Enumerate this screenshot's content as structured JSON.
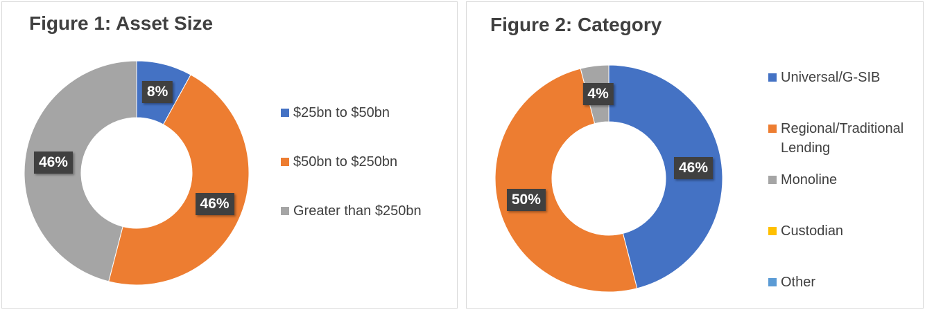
{
  "chart_data": [
    {
      "type": "donut",
      "title": "Figure 1: Asset Size",
      "categories": [
        "$25bn to $50bn",
        "$50bn to $250bn",
        "Greater than $250bn"
      ],
      "values": [
        8,
        46,
        46
      ],
      "value_labels": [
        "8%",
        "46%",
        "46%"
      ],
      "colors": [
        "#4472c4",
        "#ed7d31",
        "#a5a5a5"
      ]
    },
    {
      "type": "donut",
      "title": "Figure 2: Category",
      "categories": [
        "Universal/G-SIB",
        "Regional/Traditional Lending",
        "Monoline",
        "Custodian",
        "Other"
      ],
      "values": [
        46,
        50,
        4,
        0,
        0
      ],
      "value_labels": [
        "46%",
        "50%",
        "4%",
        null,
        null
      ],
      "colors": [
        "#4472c4",
        "#ed7d31",
        "#a5a5a5",
        "#ffc000",
        "#5b9bd5"
      ]
    }
  ]
}
